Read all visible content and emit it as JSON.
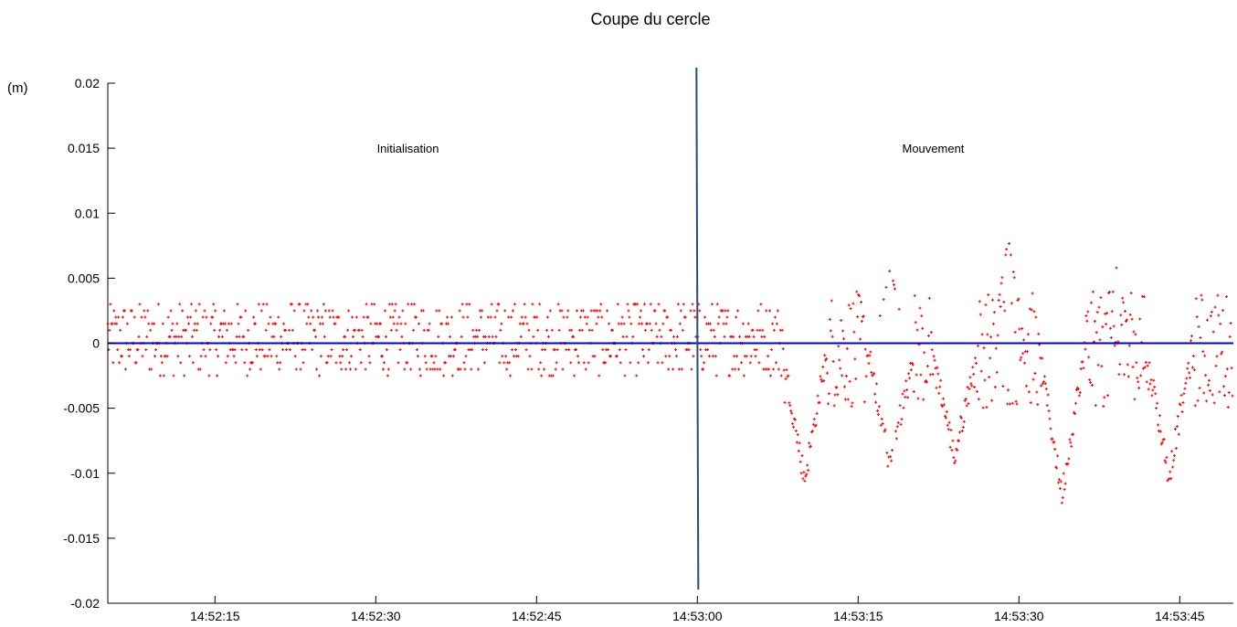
{
  "chart_data": {
    "type": "scatter",
    "title": "Coupe du cercle",
    "ylabel": "(m)",
    "xlabel": "",
    "ylim": [
      -0.02,
      0.02
    ],
    "xlim": [
      "14:52:05",
      "14:53:50"
    ],
    "yticks": [
      -0.02,
      -0.015,
      -0.01,
      -0.005,
      0,
      0.005,
      0.01,
      0.015,
      0.02
    ],
    "ytick_labels": [
      "-0.02",
      "-0.015",
      "-0.01",
      "-0.005",
      "0",
      "0.005",
      "0.01",
      "0.015",
      "0.02"
    ],
    "xtick_labels": [
      "14:52:15",
      "14:52:30",
      "14:52:45",
      "14:53:00",
      "14:53:15",
      "14:53:30",
      "14:53:45"
    ],
    "grid": false,
    "marker": "+",
    "colors": {
      "points": "#ff0000",
      "zero_line": "#0000cc",
      "divider": "#1f4e79"
    },
    "reference_line": {
      "y": 0
    },
    "vertical_marker": {
      "x": "14:53:00"
    },
    "annotations": [
      {
        "text": "Initialisation",
        "x": "14:52:33",
        "y": 0.015
      },
      {
        "text": "Mouvement",
        "x": "14:53:22",
        "y": 0.015
      }
    ],
    "series": [
      {
        "segments": [
          {
            "x_start": "14:52:05",
            "x_end": "14:53:08",
            "offset": 0.0004,
            "spread": 0.0028,
            "dips": []
          },
          {
            "x_start": "14:53:08",
            "x_end": "14:53:50",
            "offset": -0.0005,
            "spread": 0.0045,
            "dips": [
              {
                "x": "14:53:10",
                "min": -0.0105
              },
              {
                "x": "14:53:18",
                "min": -0.0095
              },
              {
                "x": "14:53:24",
                "min": -0.0088
              },
              {
                "x": "14:53:34",
                "min": -0.0117
              },
              {
                "x": "14:53:44",
                "min": -0.0103
              }
            ],
            "peaks": [
              {
                "x": "14:53:18",
                "max": 0.0058
              },
              {
                "x": "14:53:29",
                "max": 0.0081
              },
              {
                "x": "14:53:39",
                "max": 0.0062
              }
            ]
          }
        ]
      }
    ]
  }
}
